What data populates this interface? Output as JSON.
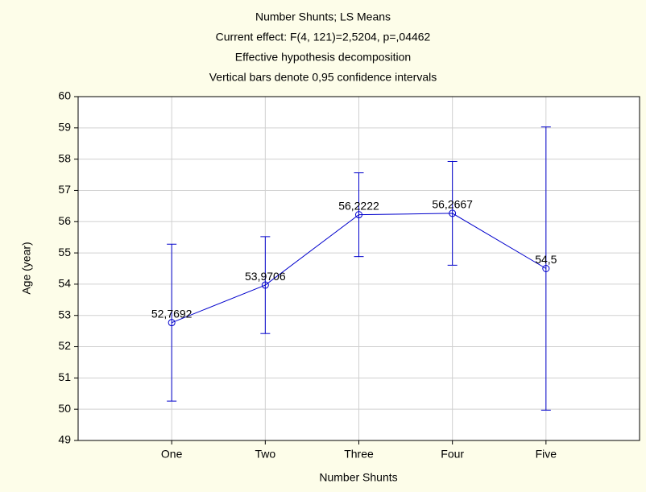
{
  "chart_data": {
    "type": "line",
    "title": "Number Shunts; LS Means",
    "subtitle": [
      "Current effect: F(4, 121)=2,5204, p=,04462",
      "Effective hypothesis decomposition",
      "Vertical bars denote 0,95 confidence intervals"
    ],
    "x_label": "Number Shunts",
    "y_label": "Age (year)",
    "categories": [
      "One",
      "Two",
      "Three",
      "Four",
      "Five"
    ],
    "values": [
      52.7692,
      53.9706,
      56.2222,
      56.2667,
      54.5
    ],
    "value_labels": [
      "52,7692",
      "53,9706",
      "56,2222",
      "56,2667",
      "54,5"
    ],
    "errors": [
      2.51,
      1.55,
      1.34,
      1.66,
      4.53
    ],
    "color": "#0000cc",
    "ylim": [
      49,
      60
    ],
    "yticks": [
      49,
      50,
      51,
      52,
      53,
      54,
      55,
      56,
      57,
      58,
      59,
      60
    ],
    "grid": true
  }
}
